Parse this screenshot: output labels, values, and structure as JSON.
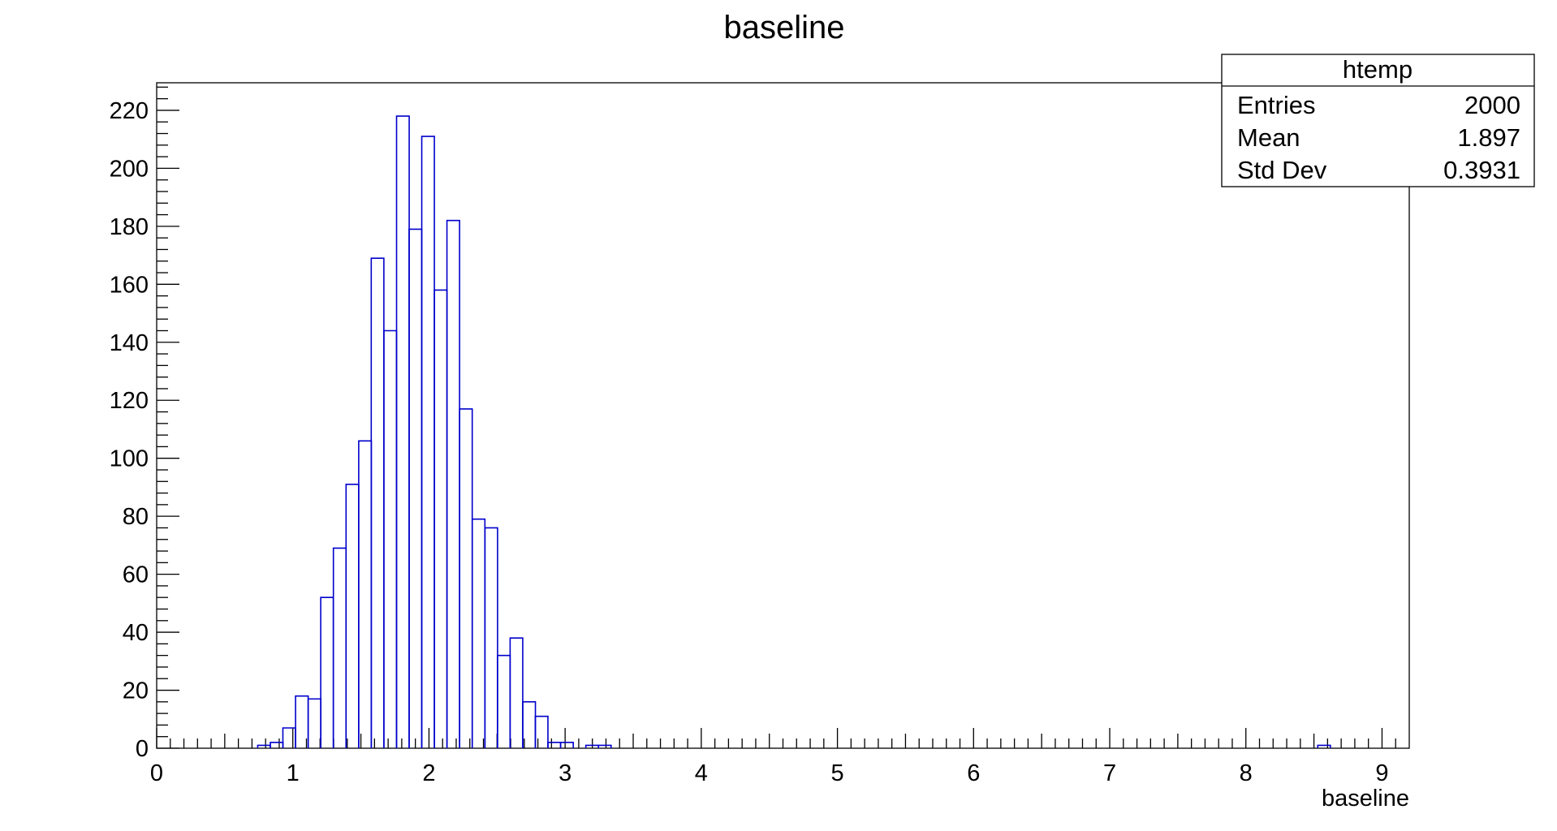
{
  "chart_data": {
    "type": "bar",
    "style": "step-histogram",
    "title": "baseline",
    "xlabel": "baseline",
    "ylabel": "",
    "xlim": [
      0,
      9.2
    ],
    "ylim": [
      0,
      229.5
    ],
    "bin_width": 0.0927,
    "x_ticks": [
      "0",
      "1",
      "2",
      "3",
      "4",
      "5",
      "6",
      "7",
      "8",
      "9"
    ],
    "y_ticks": [
      "0",
      "20",
      "40",
      "60",
      "80",
      "100",
      "120",
      "140",
      "160",
      "180",
      "200",
      "220"
    ],
    "line_color": "#0000cc",
    "grid": false,
    "bins": [
      {
        "x": 0.742,
        "y": 1
      },
      {
        "x": 0.835,
        "y": 2
      },
      {
        "x": 0.927,
        "y": 7
      },
      {
        "x": 1.02,
        "y": 18
      },
      {
        "x": 1.113,
        "y": 17
      },
      {
        "x": 1.205,
        "y": 52
      },
      {
        "x": 1.298,
        "y": 69
      },
      {
        "x": 1.391,
        "y": 91
      },
      {
        "x": 1.484,
        "y": 106
      },
      {
        "x": 1.576,
        "y": 169
      },
      {
        "x": 1.669,
        "y": 144
      },
      {
        "x": 1.762,
        "y": 218
      },
      {
        "x": 1.854,
        "y": 179
      },
      {
        "x": 1.947,
        "y": 211
      },
      {
        "x": 2.04,
        "y": 158
      },
      {
        "x": 2.132,
        "y": 182
      },
      {
        "x": 2.225,
        "y": 117
      },
      {
        "x": 2.318,
        "y": 79
      },
      {
        "x": 2.411,
        "y": 76
      },
      {
        "x": 2.503,
        "y": 32
      },
      {
        "x": 2.596,
        "y": 38
      },
      {
        "x": 2.689,
        "y": 16
      },
      {
        "x": 2.781,
        "y": 11
      },
      {
        "x": 2.874,
        "y": 2
      },
      {
        "x": 2.967,
        "y": 2
      },
      {
        "x": 3.059,
        "y": 0
      },
      {
        "x": 3.152,
        "y": 1
      },
      {
        "x": 3.245,
        "y": 1
      },
      {
        "x": 8.528,
        "y": 1
      }
    ],
    "stats_box": {
      "name": "htemp",
      "rows": [
        {
          "label": "Entries",
          "value": "2000"
        },
        {
          "label": "Mean",
          "value": "1.897"
        },
        {
          "label": "Std Dev",
          "value": "0.3931"
        }
      ]
    }
  }
}
